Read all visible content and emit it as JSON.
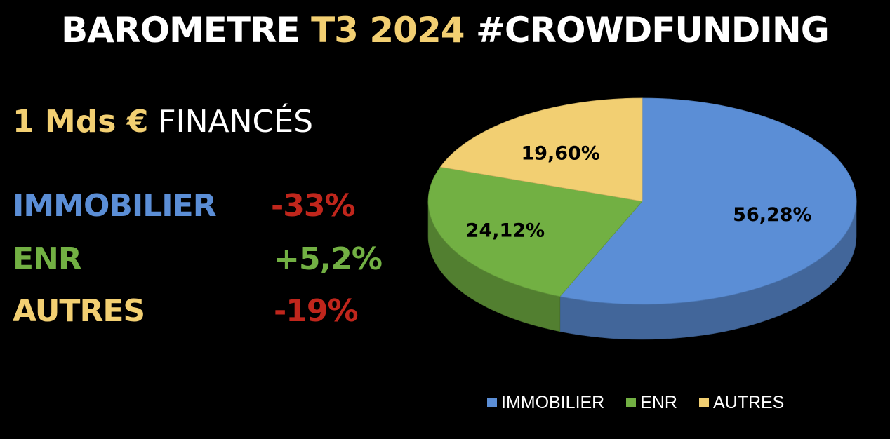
{
  "title": {
    "part1": "BAROMETRE ",
    "part2": "T3 2024",
    "part3": " #CROWDFUNDING"
  },
  "headline": {
    "amount": "1 Mds €",
    "label": " FINANCÉS"
  },
  "stats": [
    {
      "label": "IMMOBILIER",
      "value": "-33%",
      "label_color": "#5b8ed6",
      "value_color": "#c0261c"
    },
    {
      "label": "ENR",
      "value": "+5,2%",
      "label_color": "#72b043",
      "value_color": "#72b043"
    },
    {
      "label": "AUTRES",
      "value": "-19%",
      "label_color": "#f2cf72",
      "value_color": "#c0261c"
    }
  ],
  "colors": {
    "accent_yellow": "#f2cf72",
    "immobilier": "#5b8ed6",
    "enr": "#72b043",
    "autres": "#f2cf72",
    "negative": "#c0261c",
    "background": "#000000"
  },
  "chart_data": {
    "type": "pie",
    "style": "3d",
    "categories": [
      "IMMOBILIER",
      "ENR",
      "AUTRES"
    ],
    "values": [
      56.28,
      24.12,
      19.6
    ],
    "data_labels": [
      "56,28%",
      "24,12%",
      "19,60%"
    ],
    "colors": [
      "#5b8ed6",
      "#72b043",
      "#f2cf72"
    ],
    "legend_position": "bottom"
  }
}
